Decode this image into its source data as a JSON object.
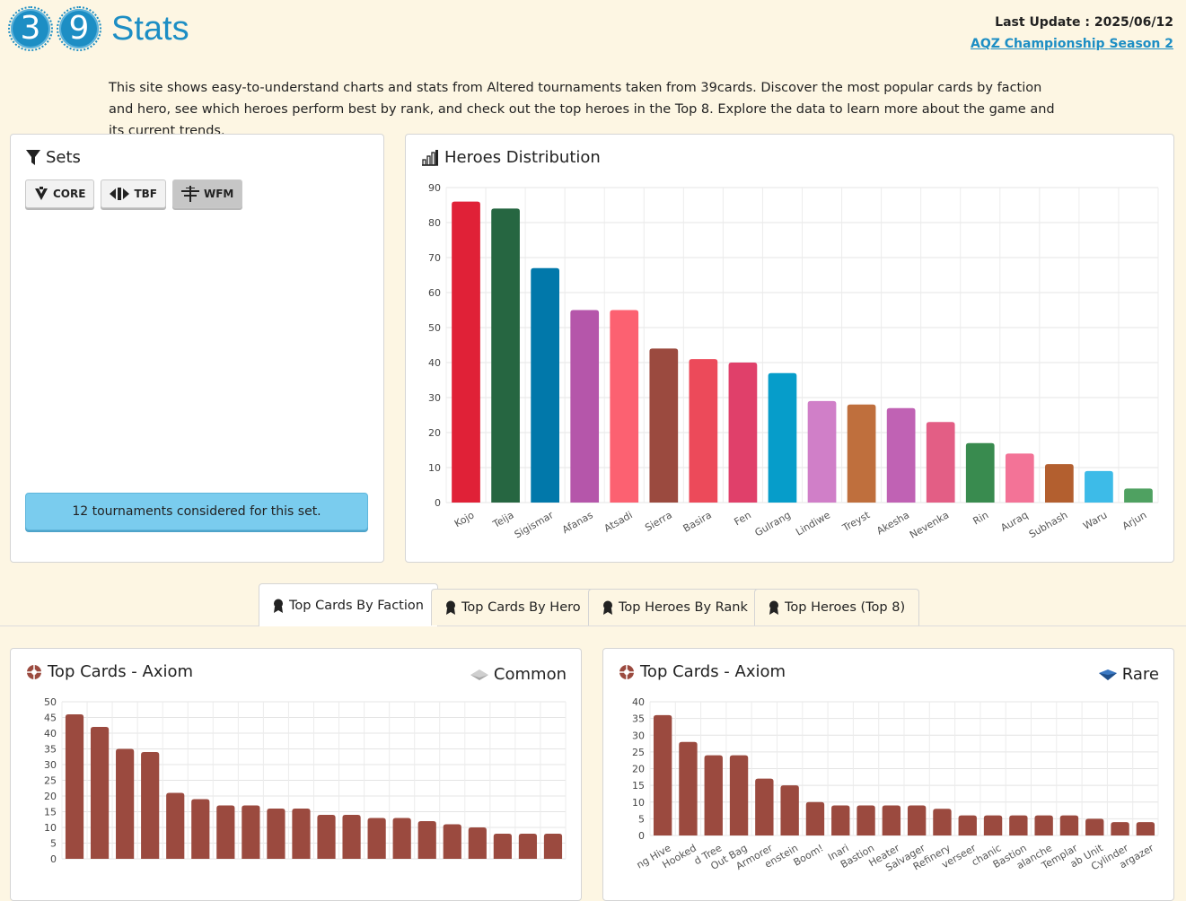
{
  "header": {
    "logo_digits": [
      "3",
      "9"
    ],
    "title": "Stats",
    "last_update": "Last Update : 2025/06/12",
    "season_link": "AQZ Championship Season 2"
  },
  "intro": "This site shows easy-to-understand charts and stats from Altered tournaments taken from 39cards. Discover the most popular cards by faction and hero, see which heroes perform best by rank, and check out the top heroes in the Top 8. Explore the data to learn more about the game and its current trends.",
  "sets": {
    "title": "Sets",
    "buttons": [
      {
        "label": "CORE",
        "icon": "core-set-icon",
        "active": false
      },
      {
        "label": "TBF",
        "icon": "tbf-set-icon",
        "active": false
      },
      {
        "label": "WFM",
        "icon": "wfm-set-icon",
        "active": true
      }
    ],
    "tournaments_text": "12 tournaments considered for this set."
  },
  "heroes": {
    "title": "Heroes Distribution"
  },
  "tabs": [
    {
      "label": "Top Cards By Faction",
      "active": true
    },
    {
      "label": "Top Cards By Hero",
      "active": false
    },
    {
      "label": "Top Heroes By Rank",
      "active": false
    },
    {
      "label": "Top Heroes (Top 8)",
      "active": false
    }
  ],
  "top_cards_common": {
    "title": "Top Cards - Axiom",
    "rarity": "Common"
  },
  "top_cards_rare": {
    "title": "Top Cards - Axiom",
    "rarity": "Rare"
  },
  "chart_data": [
    {
      "type": "bar",
      "title": "Heroes Distribution",
      "categories": [
        "Kojo",
        "Teija",
        "Sigismar",
        "Afanas",
        "Atsadi",
        "Sierra",
        "Basira",
        "Fen",
        "Gulrang",
        "Lindiwe",
        "Treyst",
        "Akesha",
        "Nevenka",
        "Rin",
        "Auraq",
        "Subhash",
        "Waru",
        "Arjun"
      ],
      "values": [
        86,
        84,
        67,
        55,
        55,
        44,
        41,
        40,
        37,
        29,
        28,
        27,
        23,
        17,
        14,
        11,
        9,
        4
      ],
      "colors": [
        "#e02137",
        "#266641",
        "#0178aa",
        "#b556aa",
        "#fc6171",
        "#9b4a3f",
        "#ec4a5a",
        "#e0406a",
        "#069dca",
        "#d07fc8",
        "#bf6f3d",
        "#c062b4",
        "#e35e85",
        "#398b4f",
        "#f37397",
        "#b35f2f",
        "#3dbbe8",
        "#4fa161"
      ],
      "ylim": [
        0,
        90
      ],
      "yticks": [
        0,
        10,
        20,
        30,
        40,
        50,
        60,
        70,
        80,
        90
      ],
      "grid": true
    },
    {
      "type": "bar",
      "title": "Top Cards - Axiom (Common)",
      "values": [
        46,
        42,
        35,
        34,
        21,
        19,
        17,
        17,
        16,
        16,
        14,
        14,
        13,
        13,
        12,
        11,
        10,
        8,
        8,
        8
      ],
      "color": "#9b4a3f",
      "ylim": [
        0,
        50
      ],
      "yticks": [
        0,
        5,
        10,
        15,
        20,
        25,
        30,
        35,
        40,
        45,
        50
      ],
      "grid": true
    },
    {
      "type": "bar",
      "title": "Top Cards - Axiom (Rare)",
      "categories": [
        "ng Hive",
        "Hooked",
        "d Tree",
        "Out Bag",
        "Armorer",
        "enstein",
        "Boom!",
        "Inari",
        "Bastion",
        "Heater",
        "Salvager",
        "Refinery",
        "verseer",
        "chanic",
        "Bastion",
        "alanche",
        "Templar",
        "ab Unit",
        "Cylinder",
        "argazer"
      ],
      "values": [
        36,
        28,
        24,
        24,
        17,
        15,
        10,
        9,
        9,
        9,
        9,
        8,
        6,
        6,
        6,
        6,
        6,
        5,
        4,
        4
      ],
      "color": "#9b4a3f",
      "ylim": [
        0,
        40
      ],
      "yticks": [
        0,
        5,
        10,
        15,
        20,
        25,
        30,
        35,
        40
      ],
      "grid": true
    }
  ]
}
